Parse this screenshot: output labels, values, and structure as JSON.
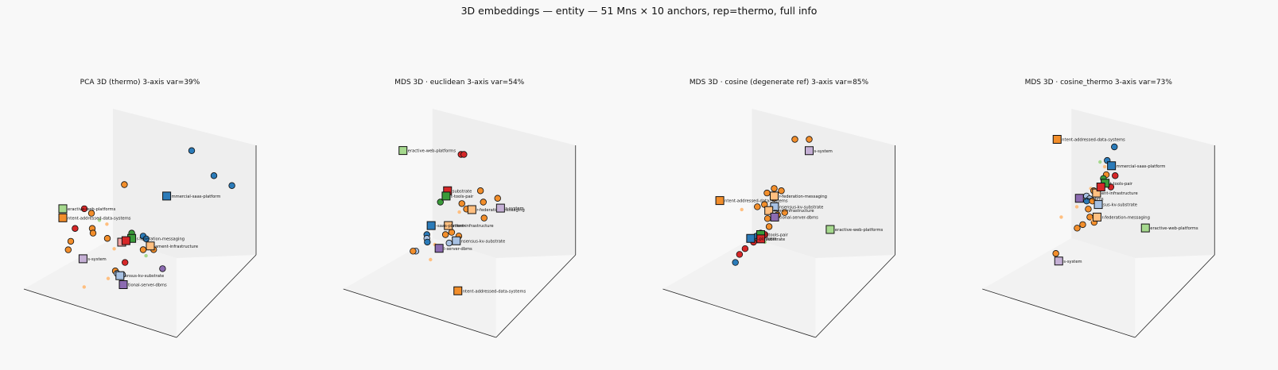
{
  "figure": {
    "title": "3D embeddings — entity — 51 Mns × 10 anchors, rep=thermo, full info"
  },
  "colors": {
    "pane": "#ececec",
    "axis": "#222222",
    "c_blue": "#2b7bb9",
    "c_orange": "#f28e2b",
    "c_lightorange": "#ffbf80",
    "c_green": "#3a9b3a",
    "c_lightgreen": "#a6d98e",
    "c_red": "#d62728",
    "c_purple": "#8c6bb1",
    "c_lavender": "#c5b0d5",
    "c_lightblue": "#a7c1e3",
    "c_pink": "#f0a0a0"
  },
  "chart_data": [
    {
      "type": "scatter",
      "title": "PCA 3D (thermo)  3-axis var=39%",
      "anchors": [
        {
          "label": "eractive-web-platforms",
          "color": "c_lightgreen",
          "x": -0.55,
          "y": 0.05,
          "z": 0.78
        },
        {
          "label": "ntent-addressed-data-systems",
          "color": "c_orange",
          "x": -0.55,
          "y": 0.05,
          "z": 0.66
        },
        {
          "label": "mmercial-saas-platform",
          "color": "c_blue",
          "x": 0.22,
          "y": 0.0,
          "z": 0.98
        },
        {
          "label": "r-federation-messaging",
          "color": "c_green",
          "x": 0.02,
          "y": -0.05,
          "z": 0.45
        },
        {
          "label": "ament-infrastructure",
          "color": "c_lightorange",
          "x": 0.15,
          "y": -0.05,
          "z": 0.35
        },
        {
          "label": "s-system",
          "color": "c_lavender",
          "x": -0.32,
          "y": -0.05,
          "z": 0.18
        },
        {
          "label": "ensus-kv-substrate",
          "color": "c_lightblue",
          "x": 0.0,
          "y": -0.12,
          "z": 0.0
        },
        {
          "label": "tional-server-dbms",
          "color": "c_purple",
          "x": 0.05,
          "y": -0.15,
          "z": -0.1
        },
        {
          "label": "",
          "color": "c_pink",
          "x": -0.05,
          "y": -0.05,
          "z": 0.4
        },
        {
          "label": "",
          "color": "c_red",
          "x": -0.02,
          "y": -0.05,
          "z": 0.42
        }
      ],
      "points": [
        {
          "color": "c_blue",
          "x": 0.35,
          "y": 0.05,
          "z": 1.55
        },
        {
          "color": "c_blue",
          "x": 0.55,
          "y": 0.0,
          "z": 1.25
        },
        {
          "color": "c_blue",
          "x": 0.72,
          "y": -0.05,
          "z": 1.15
        },
        {
          "color": "c_orange",
          "x": -0.12,
          "y": 0.05,
          "z": 1.1
        },
        {
          "color": "c_red",
          "x": -0.4,
          "y": 0.05,
          "z": 0.78
        },
        {
          "color": "c_orange",
          "x": -0.35,
          "y": 0.05,
          "z": 0.72
        },
        {
          "color": "c_red",
          "x": -0.42,
          "y": 0.0,
          "z": 0.55
        },
        {
          "color": "c_orange",
          "x": -0.3,
          "y": 0.0,
          "z": 0.55
        },
        {
          "color": "c_lightgreen",
          "x": -0.25,
          "y": 0.0,
          "z": 0.66
        },
        {
          "color": "c_orange",
          "x": -0.25,
          "y": -0.05,
          "z": 0.52
        },
        {
          "color": "c_orange",
          "x": -0.15,
          "y": -0.05,
          "z": 0.45
        },
        {
          "color": "c_lightorange",
          "x": -0.18,
          "y": -0.02,
          "z": 0.62
        },
        {
          "color": "c_blue",
          "x": 0.1,
          "y": -0.05,
          "z": 0.48
        },
        {
          "color": "c_blue",
          "x": 0.13,
          "y": -0.06,
          "z": 0.45
        },
        {
          "color": "c_green",
          "x": 0.02,
          "y": -0.05,
          "z": 0.52
        },
        {
          "color": "c_orange",
          "x": -0.45,
          "y": 0.0,
          "z": 0.38
        },
        {
          "color": "c_orange",
          "x": -0.45,
          "y": -0.02,
          "z": 0.28
        },
        {
          "color": "c_orange",
          "x": 0.1,
          "y": -0.05,
          "z": 0.3
        },
        {
          "color": "c_orange",
          "x": 0.2,
          "y": -0.08,
          "z": 0.32
        },
        {
          "color": "c_lightorange",
          "x": -0.12,
          "y": -0.03,
          "z": 0.3
        },
        {
          "color": "c_lightgreen",
          "x": 0.12,
          "y": -0.05,
          "z": 0.22
        },
        {
          "color": "c_orange",
          "x": -0.05,
          "y": -0.1,
          "z": 0.05
        },
        {
          "color": "c_lightblue",
          "x": 0.0,
          "y": -0.1,
          "z": 0.0
        },
        {
          "color": "c_purple",
          "x": 0.28,
          "y": -0.1,
          "z": 0.08
        },
        {
          "color": "c_red",
          "x": 0.0,
          "y": -0.08,
          "z": 0.15
        },
        {
          "color": "c_lightorange",
          "x": -0.1,
          "y": -0.1,
          "z": -0.05
        },
        {
          "color": "c_lightorange",
          "x": -0.25,
          "y": -0.12,
          "z": -0.15
        },
        {
          "color": "c_lightblue",
          "x": -0.02,
          "y": -0.12,
          "z": 0.03
        }
      ]
    },
    {
      "type": "scatter",
      "title": "MDS 3D · euclidean  3-axis var=54%",
      "anchors": [
        {
          "label": "eractive-web-platforms",
          "color": "c_lightgreen",
          "x": -0.45,
          "y": 0.1,
          "z": 1.52
        },
        {
          "label": "substrate",
          "color": "c_red",
          "x": -0.05,
          "y": 0.0,
          "z": 1.05
        },
        {
          "label": "t-tools-pair",
          "color": "c_green",
          "x": -0.06,
          "y": 0.0,
          "z": 0.98
        },
        {
          "label": "r-federation-messaging",
          "color": "c_lightorange",
          "x": 0.12,
          "y": 0.0,
          "z": 0.8
        },
        {
          "label": "s-system",
          "color": "c_lavender",
          "x": 0.32,
          "y": 0.0,
          "z": 0.82
        },
        {
          "label": "ment-infrastructure",
          "color": "c_lightorange",
          "x": 0.0,
          "y": -0.05,
          "z": 0.62
        },
        {
          "label": "-saas-platform",
          "color": "c_blue",
          "x": -0.12,
          "y": -0.05,
          "z": 0.62
        },
        {
          "label": "nsensus-kv-substrate",
          "color": "c_lightblue",
          "x": 0.1,
          "y": -0.1,
          "z": 0.45
        },
        {
          "label": "l-server-dbms",
          "color": "c_purple",
          "x": -0.02,
          "y": -0.1,
          "z": 0.35
        },
        {
          "label": "ntent-addressed-data-systems",
          "color": "c_orange",
          "x": 0.2,
          "y": -0.2,
          "z": -0.15
        }
      ],
      "points": [
        {
          "color": "c_red",
          "x": 0.0,
          "y": 0.05,
          "z": 1.5
        },
        {
          "color": "c_red",
          "x": 0.02,
          "y": 0.05,
          "z": 1.5
        },
        {
          "color": "c_orange",
          "x": 0.18,
          "y": 0.0,
          "z": 1.05
        },
        {
          "color": "c_orange",
          "x": 0.3,
          "y": 0.0,
          "z": 0.95
        },
        {
          "color": "c_orange",
          "x": 0.2,
          "y": 0.0,
          "z": 0.9
        },
        {
          "color": "c_green",
          "x": -0.1,
          "y": 0.0,
          "z": 0.9
        },
        {
          "color": "c_orange",
          "x": 0.05,
          "y": 0.0,
          "z": 0.88
        },
        {
          "color": "c_orange",
          "x": 0.1,
          "y": -0.02,
          "z": 0.82
        },
        {
          "color": "c_lightorange",
          "x": 0.05,
          "y": -0.02,
          "z": 0.78
        },
        {
          "color": "c_blue",
          "x": -0.15,
          "y": -0.05,
          "z": 0.5
        },
        {
          "color": "c_lightblue",
          "x": -0.15,
          "y": -0.05,
          "z": 0.45
        },
        {
          "color": "c_orange",
          "x": -0.02,
          "y": -0.05,
          "z": 0.5
        },
        {
          "color": "c_orange",
          "x": 0.05,
          "y": -0.08,
          "z": 0.55
        },
        {
          "color": "c_lightblue",
          "x": 0.05,
          "y": -0.1,
          "z": 0.42
        },
        {
          "color": "c_orange",
          "x": 0.1,
          "y": -0.08,
          "z": 0.5
        },
        {
          "color": "c_lightblue",
          "x": -0.2,
          "y": -0.08,
          "z": 0.3
        },
        {
          "color": "c_orange",
          "x": -0.22,
          "y": -0.08,
          "z": 0.3
        },
        {
          "color": "c_lightorange",
          "x": -0.08,
          "y": -0.1,
          "z": 0.2
        },
        {
          "color": "c_blue",
          "x": -0.12,
          "y": -0.08,
          "z": 0.42
        },
        {
          "color": "c_lightorange",
          "x": -0.05,
          "y": -0.1,
          "z": 0.4
        },
        {
          "color": "c_orange",
          "x": 0.25,
          "y": -0.05,
          "z": 0.72
        }
      ]
    },
    {
      "type": "scatter",
      "title": "MDS 3D · cosine (degenerate ref)  3-axis var=85%",
      "anchors": [
        {
          "label": "s-system",
          "color": "c_lavender",
          "x": 0.2,
          "y": 0.05,
          "z": 1.55
        },
        {
          "label": "ntent-addressed-data-systems",
          "color": "c_orange",
          "x": -0.38,
          "y": 0.0,
          "z": 0.92
        },
        {
          "label": "r-federation-messaging",
          "color": "c_lightorange",
          "x": 0.0,
          "y": 0.0,
          "z": 0.98
        },
        {
          "label": "nsensus-kv-substrate",
          "color": "c_lightblue",
          "x": 0.02,
          "y": -0.02,
          "z": 0.85
        },
        {
          "label": "ment-infrastructure",
          "color": "c_lightorange",
          "x": -0.02,
          "y": -0.02,
          "z": 0.8
        },
        {
          "label": "tional-server-dbms",
          "color": "c_purple",
          "x": 0.03,
          "y": -0.03,
          "z": 0.72
        },
        {
          "label": "eractive-web-platforms",
          "color": "c_lightgreen",
          "x": 0.48,
          "y": -0.1,
          "z": 0.6
        },
        {
          "label": "t-tools-pair",
          "color": "c_green",
          "x": -0.05,
          "y": -0.05,
          "z": 0.5
        },
        {
          "label": "substrate",
          "color": "c_red",
          "x": -0.04,
          "y": -0.06,
          "z": 0.45
        },
        {
          "label": "s-platform",
          "color": "c_blue",
          "x": -0.12,
          "y": -0.05,
          "z": 0.45
        }
      ],
      "points": [
        {
          "color": "c_orange",
          "x": 0.2,
          "y": 0.05,
          "z": 1.7
        },
        {
          "color": "c_orange",
          "x": 0.1,
          "y": 0.05,
          "z": 1.7
        },
        {
          "color": "c_orange",
          "x": 0.0,
          "y": 0.0,
          "z": 1.08
        },
        {
          "color": "c_orange",
          "x": 0.05,
          "y": 0.0,
          "z": 1.05
        },
        {
          "color": "c_orange",
          "x": -0.05,
          "y": 0.0,
          "z": 1.02
        },
        {
          "color": "c_orange",
          "x": 0.0,
          "y": 0.0,
          "z": 0.95
        },
        {
          "color": "c_orange",
          "x": -0.05,
          "y": -0.02,
          "z": 0.88
        },
        {
          "color": "c_orange",
          "x": -0.1,
          "y": -0.02,
          "z": 0.85
        },
        {
          "color": "c_lightorange",
          "x": -0.2,
          "y": -0.03,
          "z": 0.82
        },
        {
          "color": "c_orange",
          "x": 0.1,
          "y": -0.03,
          "z": 0.78
        },
        {
          "color": "c_orange",
          "x": 0.05,
          "y": -0.03,
          "z": 0.75
        },
        {
          "color": "c_orange",
          "x": -0.02,
          "y": -0.03,
          "z": 0.7
        },
        {
          "color": "c_orange",
          "x": 0.0,
          "y": -0.04,
          "z": 0.6
        },
        {
          "color": "c_red",
          "x": -0.02,
          "y": -0.05,
          "z": 0.5
        },
        {
          "color": "c_blue",
          "x": -0.08,
          "y": -0.05,
          "z": 0.48
        },
        {
          "color": "c_red",
          "x": -0.1,
          "y": -0.05,
          "z": 0.4
        },
        {
          "color": "c_red",
          "x": -0.15,
          "y": -0.06,
          "z": 0.32
        },
        {
          "color": "c_red",
          "x": -0.18,
          "y": -0.07,
          "z": 0.25
        },
        {
          "color": "c_blue",
          "x": -0.2,
          "y": -0.08,
          "z": 0.15
        },
        {
          "color": "c_lightgreen",
          "x": -0.02,
          "y": -0.05,
          "z": 0.4
        },
        {
          "color": "c_lightorange",
          "x": -0.05,
          "y": -0.05,
          "z": 0.42
        },
        {
          "color": "c_green",
          "x": -0.05,
          "y": -0.05,
          "z": 0.52
        }
      ]
    },
    {
      "type": "scatter",
      "title": "MDS 3D · cosine_thermo  3-axis var=73%",
      "anchors": [
        {
          "label": "ntent-addressed-data-systems",
          "color": "c_orange",
          "x": -0.3,
          "y": 0.05,
          "z": 1.7
        },
        {
          "label": "mmercial-saas-platform",
          "color": "c_blue",
          "x": 0.08,
          "y": 0.05,
          "z": 1.35
        },
        {
          "label": "t-tools-pair",
          "color": "c_green",
          "x": 0.08,
          "y": 0.0,
          "z": 1.15
        },
        {
          "label": "ent-infrastructure",
          "color": "c_lightorange",
          "x": 0.02,
          "y": 0.0,
          "z": 1.02
        },
        {
          "label": "ver-dbms",
          "color": "c_purple",
          "x": -0.1,
          "y": 0.0,
          "z": 0.95
        },
        {
          "label": "sus-kv-substrate",
          "color": "c_lightblue",
          "x": 0.05,
          "y": -0.02,
          "z": 0.88
        },
        {
          "label": "r-federation-messaging",
          "color": "c_lightorange",
          "x": 0.05,
          "y": -0.03,
          "z": 0.72
        },
        {
          "label": "eractive-web-platforms",
          "color": "c_lightgreen",
          "x": 0.45,
          "y": -0.1,
          "z": 0.62
        },
        {
          "label": "s-system",
          "color": "c_lavender",
          "x": -0.2,
          "y": -0.05,
          "z": 0.15
        },
        {
          "label": "",
          "color": "c_red",
          "x": 0.05,
          "y": 0.0,
          "z": 1.1
        }
      ],
      "points": [
        {
          "color": "c_blue",
          "x": 0.1,
          "y": 0.05,
          "z": 1.6
        },
        {
          "color": "c_blue",
          "x": 0.05,
          "y": 0.05,
          "z": 1.42
        },
        {
          "color": "c_lightgreen",
          "x": 0.0,
          "y": 0.05,
          "z": 1.4
        },
        {
          "color": "c_lightorange",
          "x": 0.05,
          "y": 0.03,
          "z": 1.35
        },
        {
          "color": "c_orange",
          "x": 0.07,
          "y": 0.02,
          "z": 1.25
        },
        {
          "color": "c_green",
          "x": 0.05,
          "y": 0.02,
          "z": 1.2
        },
        {
          "color": "c_red",
          "x": 0.15,
          "y": 0.0,
          "z": 1.25
        },
        {
          "color": "c_red",
          "x": 0.12,
          "y": 0.0,
          "z": 1.1
        },
        {
          "color": "c_lightorange",
          "x": -0.02,
          "y": 0.0,
          "z": 1.08
        },
        {
          "color": "c_orange",
          "x": 0.0,
          "y": 0.0,
          "z": 1.05
        },
        {
          "color": "c_lightblue",
          "x": -0.05,
          "y": 0.0,
          "z": 0.98
        },
        {
          "color": "c_lightblue",
          "x": -0.02,
          "y": -0.01,
          "z": 0.95
        },
        {
          "color": "c_blue",
          "x": -0.04,
          "y": -0.01,
          "z": 0.92
        },
        {
          "color": "c_orange",
          "x": 0.0,
          "y": -0.01,
          "z": 0.92
        },
        {
          "color": "c_orange",
          "x": -0.02,
          "y": -0.02,
          "z": 0.82
        },
        {
          "color": "c_lightorange",
          "x": -0.1,
          "y": -0.02,
          "z": 0.85
        },
        {
          "color": "c_orange",
          "x": 0.0,
          "y": -0.03,
          "z": 0.72
        },
        {
          "color": "c_orange",
          "x": 0.03,
          "y": -0.03,
          "z": 0.65
        },
        {
          "color": "c_orange",
          "x": -0.05,
          "y": -0.03,
          "z": 0.62
        },
        {
          "color": "c_orange",
          "x": -0.08,
          "y": -0.04,
          "z": 0.58
        },
        {
          "color": "c_lightorange",
          "x": -0.2,
          "y": -0.03,
          "z": 0.72
        },
        {
          "color": "c_orange",
          "x": -0.22,
          "y": -0.05,
          "z": 0.25
        },
        {
          "color": "c_lightorange",
          "x": 0.02,
          "y": -0.03,
          "z": 0.68
        }
      ]
    }
  ]
}
